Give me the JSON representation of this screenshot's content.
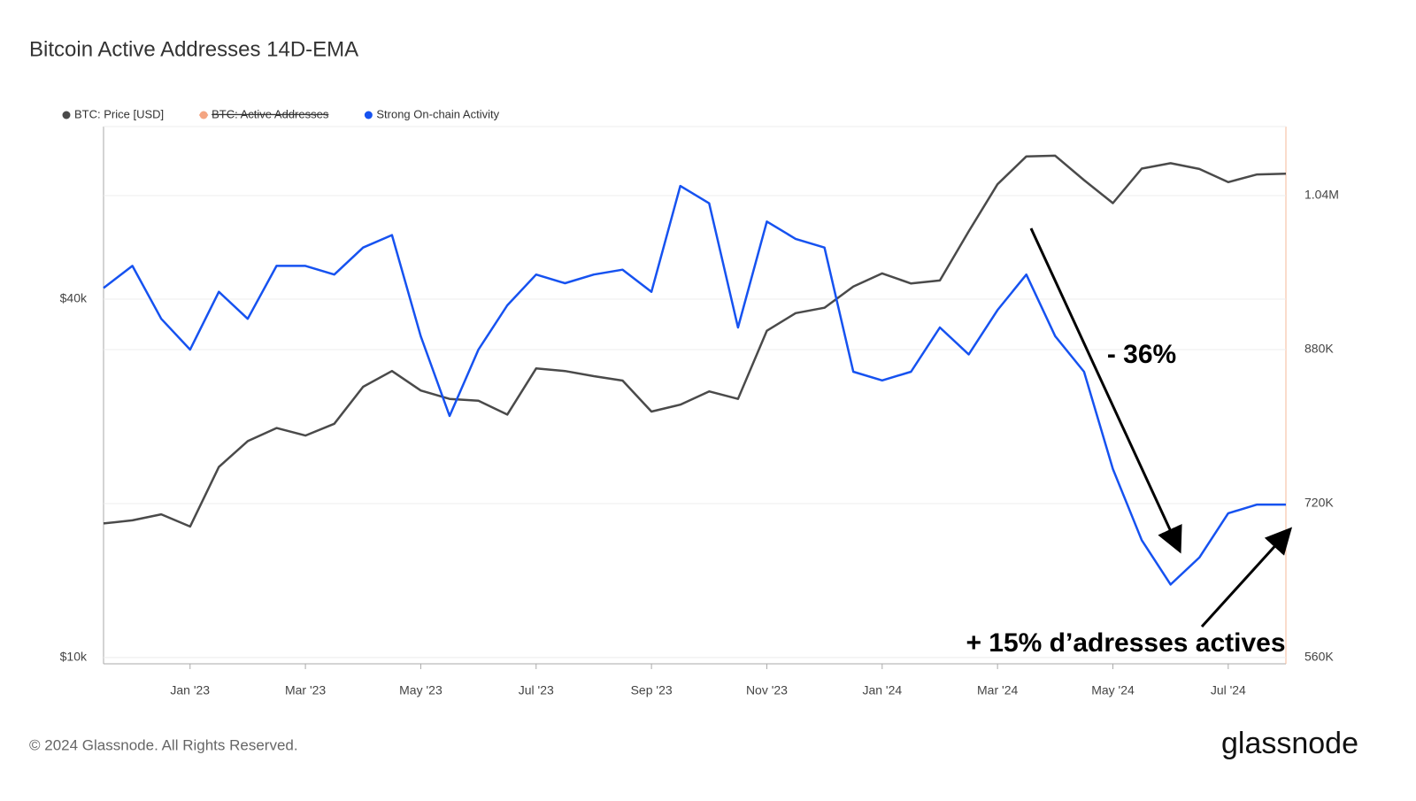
{
  "chart_data": {
    "type": "line",
    "title": "Bitcoin Active Addresses 14D-EMA",
    "categories": [
      null,
      null,
      null,
      "Jan '23",
      null,
      null,
      null,
      "Mar '23",
      null,
      null,
      null,
      "May '23",
      null,
      null,
      null,
      "Jul '23",
      null,
      null,
      null,
      "Sep '23",
      null,
      null,
      null,
      "Nov '23",
      null,
      null,
      null,
      "Jan '24",
      null,
      null,
      null,
      "Mar '24",
      null,
      null,
      null,
      "May '24",
      null,
      null,
      null,
      "Jul '24",
      null,
      null
    ],
    "series": [
      {
        "name": "BTC: Price [USD]",
        "color": "#4a4a4a",
        "axis": "y",
        "values": [
          16800,
          17000,
          17400,
          16600,
          20900,
          23100,
          24300,
          23600,
          24700,
          28500,
          30300,
          28100,
          27200,
          27000,
          25600,
          30600,
          30300,
          29700,
          29200,
          25900,
          26600,
          28000,
          27200,
          35400,
          37900,
          38700,
          42000,
          44200,
          42500,
          43000,
          52000,
          62400,
          69500,
          69700,
          63400,
          58000,
          66300,
          67700,
          66200,
          62900,
          64800,
          65000
        ]
      },
      {
        "name": "BTC: Active Addresses",
        "color": "#f4a582",
        "hidden": true
      },
      {
        "name": "Strong On-chain Activity",
        "color": "#1652f0",
        "axis": "y2",
        "values": [
          944000,
          967000,
          912000,
          880000,
          940000,
          912000,
          967000,
          967000,
          958000,
          986000,
          999000,
          894000,
          811000,
          880000,
          926000,
          958000,
          949000,
          958000,
          963000,
          940000,
          1050000,
          1032000,
          903000,
          1013000,
          995000,
          986000,
          857000,
          848000,
          857000,
          903000,
          875000,
          921000,
          958000,
          894000,
          857000,
          756000,
          682000,
          636000,
          664000,
          710000,
          719000,
          719000
        ]
      }
    ],
    "log_y": true,
    "ylim": [
      9760,
      78000
    ],
    "yticks": [
      {
        "value": 10000,
        "label": "$10k"
      },
      {
        "value": 40000,
        "label": "$40k"
      }
    ],
    "y2lim": [
      553600,
      1111700
    ],
    "y2ticks": [
      {
        "value": 560000,
        "label": "560K"
      },
      {
        "value": 720000,
        "label": "720K"
      },
      {
        "value": 880000,
        "label": "880K"
      },
      {
        "value": 1040000,
        "label": "1.04M"
      }
    ],
    "grid": true,
    "annotations": [
      "- 36%",
      "+ 15% d’adresses actives"
    ]
  },
  "footer": {
    "copyright": "© 2024 Glassnode. All Rights Reserved.",
    "brand": "glassnode"
  }
}
